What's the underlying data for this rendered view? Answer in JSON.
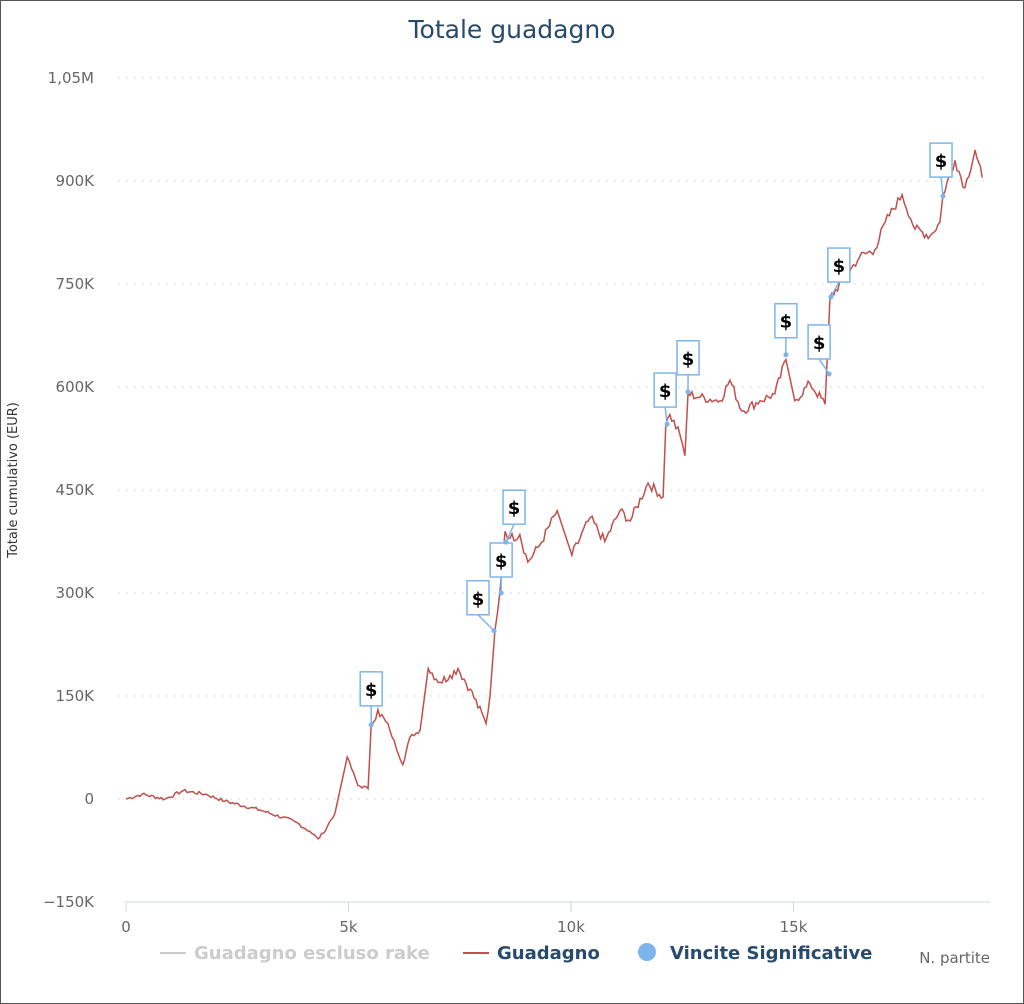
{
  "chart_data": {
    "type": "line",
    "title": "Totale guadagno",
    "xlabel": "N. partite",
    "ylabel": "Totale cumulativo (EUR)",
    "xlim": [
      0,
      19.5
    ],
    "x_units": "thousands of games",
    "ylim": [
      -150,
      1050
    ],
    "y_units": "thousands EUR",
    "grid": "horizontal dotted",
    "legend_position": "bottom",
    "x_ticks": [
      {
        "value": 0,
        "label": "0"
      },
      {
        "value": 5,
        "label": "5k"
      },
      {
        "value": 10,
        "label": "10k"
      },
      {
        "value": 15,
        "label": "15k"
      }
    ],
    "y_ticks": [
      {
        "value": -150,
        "label": "−150K"
      },
      {
        "value": 0,
        "label": "0"
      },
      {
        "value": 150,
        "label": "150K"
      },
      {
        "value": 300,
        "label": "300K"
      },
      {
        "value": 450,
        "label": "450K"
      },
      {
        "value": 600,
        "label": "600K"
      },
      {
        "value": 750,
        "label": "750K"
      },
      {
        "value": 900,
        "label": "900K"
      },
      {
        "value": 1050,
        "label": "1,05M"
      }
    ],
    "series": [
      {
        "name": "Guadagno escluso rake",
        "color": "#cccccc",
        "visible": false,
        "points": []
      },
      {
        "name": "Guadagno",
        "color": "#c0504d",
        "visible": true,
        "points": [
          [
            0,
            0
          ],
          [
            0.36,
            7
          ],
          [
            0.88,
            0
          ],
          [
            1.28,
            12
          ],
          [
            1.78,
            7
          ],
          [
            2.22,
            -3
          ],
          [
            3.01,
            -16
          ],
          [
            3.8,
            -33
          ],
          [
            4.13,
            -47
          ],
          [
            4.31,
            -58
          ],
          [
            4.43,
            -50
          ],
          [
            4.7,
            -20
          ],
          [
            4.97,
            61
          ],
          [
            5.21,
            20
          ],
          [
            5.44,
            15
          ],
          [
            5.51,
            108
          ],
          [
            5.66,
            130
          ],
          [
            5.93,
            100
          ],
          [
            6.22,
            50
          ],
          [
            6.38,
            90
          ],
          [
            6.61,
            100
          ],
          [
            6.79,
            190
          ],
          [
            7.06,
            170
          ],
          [
            7.28,
            180
          ],
          [
            7.46,
            190
          ],
          [
            7.73,
            160
          ],
          [
            8.09,
            110
          ],
          [
            8.18,
            150
          ],
          [
            8.29,
            245
          ],
          [
            8.4,
            300
          ],
          [
            8.52,
            390
          ],
          [
            8.63,
            380
          ],
          [
            8.85,
            385
          ],
          [
            9.03,
            345
          ],
          [
            9.3,
            370
          ],
          [
            9.69,
            420
          ],
          [
            10.02,
            355
          ],
          [
            10.43,
            410
          ],
          [
            10.76,
            375
          ],
          [
            11.1,
            420
          ],
          [
            11.33,
            405
          ],
          [
            11.73,
            460
          ],
          [
            12.07,
            440
          ],
          [
            12.13,
            545
          ],
          [
            12.22,
            560
          ],
          [
            12.45,
            530
          ],
          [
            12.56,
            500
          ],
          [
            12.63,
            590
          ],
          [
            12.9,
            585
          ],
          [
            13.35,
            580
          ],
          [
            13.57,
            610
          ],
          [
            13.84,
            565
          ],
          [
            14.25,
            580
          ],
          [
            14.58,
            590
          ],
          [
            14.83,
            640
          ],
          [
            15.03,
            580
          ],
          [
            15.37,
            605
          ],
          [
            15.71,
            575
          ],
          [
            15.82,
            730
          ],
          [
            16.16,
            760
          ],
          [
            16.49,
            790
          ],
          [
            16.83,
            800
          ],
          [
            17.06,
            840
          ],
          [
            17.44,
            880
          ],
          [
            17.73,
            830
          ],
          [
            18.07,
            820
          ],
          [
            18.29,
            840
          ],
          [
            18.36,
            880
          ],
          [
            18.63,
            930
          ],
          [
            18.85,
            890
          ],
          [
            19.08,
            945
          ],
          [
            19.24,
            905
          ]
        ]
      },
      {
        "name": "Vincite Significative",
        "color": "#7cb5ec",
        "type": "flags",
        "flag_text": "$",
        "points": [
          [
            5.51,
            108
          ],
          [
            8.27,
            245
          ],
          [
            8.43,
            300
          ],
          [
            8.54,
            374
          ],
          [
            12.16,
            546
          ],
          [
            12.63,
            593
          ],
          [
            14.83,
            647
          ],
          [
            15.8,
            619
          ],
          [
            15.84,
            731
          ],
          [
            18.36,
            878
          ]
        ]
      }
    ]
  }
}
